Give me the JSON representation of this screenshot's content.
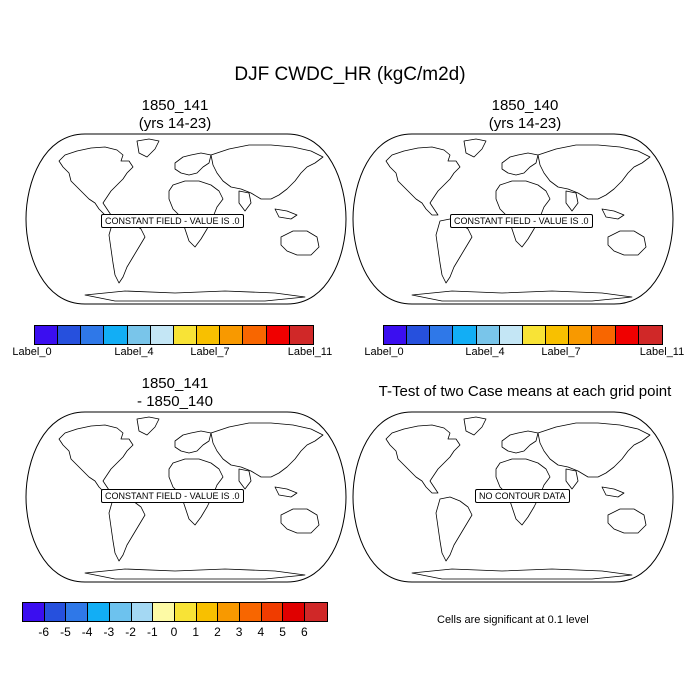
{
  "title": "DJF CWDC_HR (kgC/m2d)",
  "panels": [
    {
      "title_line1": "1850_141",
      "title_line2": "(yrs 14-23)",
      "message": "CONSTANT FIELD - VALUE IS .0"
    },
    {
      "title_line1": "1850_140",
      "title_line2": "(yrs 14-23)",
      "message": "CONSTANT FIELD - VALUE IS .0"
    },
    {
      "title_line1": "1850_141",
      "title_line2": "- 1850_140",
      "message": "CONSTANT FIELD - VALUE IS .0"
    },
    {
      "title_line1": "T-Test of two Case means at each grid point",
      "title_line2": "",
      "message": "NO CONTOUR DATA"
    }
  ],
  "colorbar_top": {
    "colors": [
      "#3b0ef0",
      "#2650dd",
      "#2f78e8",
      "#12aef5",
      "#79c5ea",
      "#c4e6f5",
      "#f8e336",
      "#f8c000",
      "#f89900",
      "#f86600",
      "#f00000",
      "#d02828"
    ],
    "labels": [
      "Label_0",
      "Label_4",
      "Label_7",
      "Label_11"
    ]
  },
  "colorbar_bottom": {
    "colors": [
      "#3b0ef0",
      "#2650dd",
      "#2f78e8",
      "#12aef5",
      "#6dc2ee",
      "#a4d8f3",
      "#fdfaa5",
      "#f8e336",
      "#f8c000",
      "#f89900",
      "#f86600",
      "#f03c00",
      "#e00000",
      "#d02828"
    ],
    "labels": [
      "-6",
      "-5",
      "-4",
      "-3",
      "-2",
      "-1",
      "0",
      "1",
      "2",
      "3",
      "4",
      "5",
      "6"
    ]
  },
  "significance_note": "Cells are significant at 0.1 level"
}
